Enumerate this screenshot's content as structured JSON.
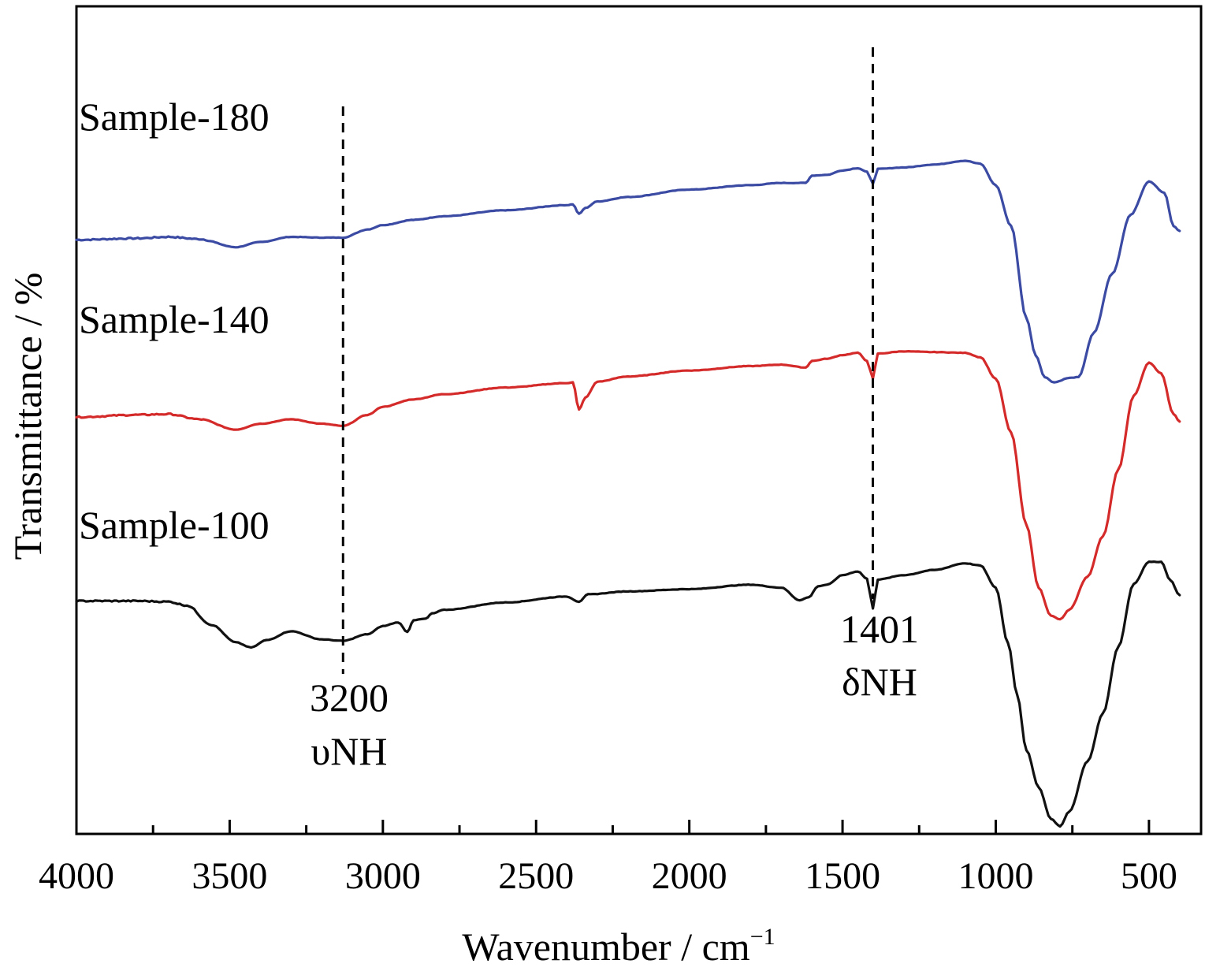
{
  "chart_data": {
    "type": "line",
    "title": "",
    "xlabel": "Wavenumber / cm",
    "xlabel_superscript": "−1",
    "ylabel": "Transmittance / %",
    "xlim": [
      4000,
      330
    ],
    "x_reversed": true,
    "y_ticks_shown": false,
    "xticks_major": [
      4000,
      3500,
      3000,
      2500,
      2000,
      1500,
      1000,
      500
    ],
    "xticks_labels": [
      "4000",
      "3500",
      "3000",
      "2500",
      "2000",
      "1500",
      "1000",
      "500"
    ],
    "grid": false,
    "legend": "inline labels (left)",
    "units": "relative transmittance, curves offset vertically",
    "series": [
      {
        "name": "Sample-180",
        "color": "#3b4aa3",
        "points": [
          [
            4000,
            76.6
          ],
          [
            3800,
            76.8
          ],
          [
            3700,
            77.0
          ],
          [
            3600,
            76.7
          ],
          [
            3480,
            75.6
          ],
          [
            3400,
            76.3
          ],
          [
            3300,
            77.0
          ],
          [
            3200,
            76.9
          ],
          [
            3130,
            76.9
          ],
          [
            3050,
            78.0
          ],
          [
            3000,
            78.6
          ],
          [
            2900,
            79.3
          ],
          [
            2800,
            79.8
          ],
          [
            2600,
            80.6
          ],
          [
            2400,
            81.3
          ],
          [
            2380,
            81.4
          ],
          [
            2360,
            80.1
          ],
          [
            2340,
            80.9
          ],
          [
            2300,
            81.8
          ],
          [
            2200,
            82.4
          ],
          [
            2000,
            83.4
          ],
          [
            1800,
            84.0
          ],
          [
            1700,
            84.3
          ],
          [
            1620,
            84.3
          ],
          [
            1600,
            85.3
          ],
          [
            1550,
            85.4
          ],
          [
            1500,
            86.0
          ],
          [
            1450,
            86.3
          ],
          [
            1420,
            85.8
          ],
          [
            1401,
            84.2
          ],
          [
            1385,
            86.2
          ],
          [
            1300,
            86.4
          ],
          [
            1200,
            86.8
          ],
          [
            1100,
            87.3
          ],
          [
            1050,
            86.9
          ],
          [
            1000,
            84.0
          ],
          [
            950,
            78.5
          ],
          [
            900,
            66.0
          ],
          [
            870,
            61.0
          ],
          [
            840,
            58.0
          ],
          [
            810,
            57.3
          ],
          [
            760,
            57.9
          ],
          [
            730,
            58.0
          ],
          [
            680,
            64.0
          ],
          [
            620,
            72.0
          ],
          [
            560,
            80.0
          ],
          [
            500,
            84.5
          ],
          [
            450,
            83.0
          ],
          [
            420,
            78.5
          ],
          [
            400,
            77.8
          ]
        ]
      },
      {
        "name": "Sample-140",
        "color": "#d42a2a",
        "points": [
          [
            4000,
            52.6
          ],
          [
            3800,
            52.9
          ],
          [
            3700,
            53.0
          ],
          [
            3600,
            52.3
          ],
          [
            3480,
            50.9
          ],
          [
            3400,
            51.7
          ],
          [
            3300,
            52.3
          ],
          [
            3200,
            51.7
          ],
          [
            3130,
            51.4
          ],
          [
            3050,
            52.9
          ],
          [
            3000,
            54.0
          ],
          [
            2900,
            55.0
          ],
          [
            2800,
            55.7
          ],
          [
            2600,
            56.6
          ],
          [
            2400,
            57.2
          ],
          [
            2380,
            57.3
          ],
          [
            2360,
            53.6
          ],
          [
            2340,
            55.2
          ],
          [
            2300,
            57.4
          ],
          [
            2200,
            58.1
          ],
          [
            2000,
            58.9
          ],
          [
            1800,
            59.5
          ],
          [
            1700,
            59.7
          ],
          [
            1620,
            59.3
          ],
          [
            1600,
            60.2
          ],
          [
            1550,
            60.5
          ],
          [
            1500,
            61.0
          ],
          [
            1450,
            61.3
          ],
          [
            1420,
            60.2
          ],
          [
            1401,
            57.8
          ],
          [
            1385,
            61.2
          ],
          [
            1300,
            61.5
          ],
          [
            1200,
            61.4
          ],
          [
            1100,
            61.3
          ],
          [
            1050,
            60.7
          ],
          [
            1000,
            57.8
          ],
          [
            950,
            50.5
          ],
          [
            900,
            38.0
          ],
          [
            860,
            29.5
          ],
          [
            820,
            25.7
          ],
          [
            790,
            25.2
          ],
          [
            760,
            26.5
          ],
          [
            700,
            31.0
          ],
          [
            650,
            36.5
          ],
          [
            600,
            45.5
          ],
          [
            550,
            55.5
          ],
          [
            500,
            60.0
          ],
          [
            460,
            58.5
          ],
          [
            420,
            53.0
          ],
          [
            400,
            52.0
          ]
        ]
      },
      {
        "name": "Sample-100",
        "color": "#111111",
        "points": [
          [
            4000,
            27.7
          ],
          [
            3800,
            27.7
          ],
          [
            3700,
            27.6
          ],
          [
            3640,
            27.1
          ],
          [
            3560,
            24.5
          ],
          [
            3480,
            22.1
          ],
          [
            3430,
            21.4
          ],
          [
            3380,
            22.4
          ],
          [
            3300,
            23.6
          ],
          [
            3200,
            22.5
          ],
          [
            3130,
            22.3
          ],
          [
            3050,
            23.2
          ],
          [
            3000,
            24.3
          ],
          [
            2950,
            24.8
          ],
          [
            2920,
            23.5
          ],
          [
            2900,
            25.1
          ],
          [
            2860,
            25.3
          ],
          [
            2840,
            26.0
          ],
          [
            2800,
            26.5
          ],
          [
            2600,
            27.5
          ],
          [
            2400,
            28.3
          ],
          [
            2360,
            27.6
          ],
          [
            2330,
            28.6
          ],
          [
            2200,
            29.0
          ],
          [
            2000,
            29.3
          ],
          [
            1800,
            29.9
          ],
          [
            1700,
            29.5
          ],
          [
            1640,
            27.8
          ],
          [
            1610,
            28.2
          ],
          [
            1580,
            29.7
          ],
          [
            1550,
            29.9
          ],
          [
            1500,
            31.2
          ],
          [
            1450,
            31.7
          ],
          [
            1420,
            30.7
          ],
          [
            1401,
            26.7
          ],
          [
            1385,
            30.6
          ],
          [
            1300,
            31.2
          ],
          [
            1200,
            31.9
          ],
          [
            1100,
            32.8
          ],
          [
            1050,
            32.5
          ],
          [
            1000,
            29.5
          ],
          [
            960,
            22.0
          ],
          [
            930,
            15.0
          ],
          [
            900,
            7.5
          ],
          [
            860,
            2.5
          ],
          [
            820,
            -1.8
          ],
          [
            790,
            -2.8
          ],
          [
            760,
            -0.8
          ],
          [
            700,
            6.0
          ],
          [
            650,
            12.5
          ],
          [
            600,
            21.5
          ],
          [
            550,
            30.0
          ],
          [
            500,
            33.0
          ],
          [
            460,
            33.0
          ],
          [
            430,
            30.5
          ],
          [
            400,
            28.5
          ]
        ]
      }
    ],
    "annotations": [
      {
        "x": 3130,
        "line1": "3200",
        "line2": "υNH",
        "style": "dashed"
      },
      {
        "x": 1401,
        "line1": "1401",
        "line2": "δNH",
        "style": "dashed"
      }
    ]
  }
}
